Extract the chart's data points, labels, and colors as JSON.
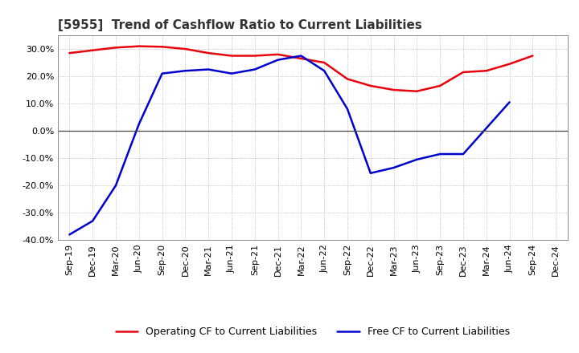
{
  "title": "[5955]  Trend of Cashflow Ratio to Current Liabilities",
  "x_labels": [
    "Sep-19",
    "Dec-19",
    "Mar-20",
    "Jun-20",
    "Sep-20",
    "Dec-20",
    "Mar-21",
    "Jun-21",
    "Sep-21",
    "Dec-21",
    "Mar-22",
    "Jun-22",
    "Sep-22",
    "Dec-22",
    "Mar-23",
    "Jun-23",
    "Sep-23",
    "Dec-23",
    "Mar-24",
    "Jun-24",
    "Sep-24",
    "Dec-24"
  ],
  "operating_cf": [
    28.5,
    29.5,
    30.5,
    31.0,
    30.8,
    30.0,
    28.5,
    27.5,
    27.5,
    28.0,
    26.5,
    25.0,
    19.0,
    16.5,
    15.0,
    14.5,
    16.5,
    21.5,
    22.0,
    24.5,
    27.5,
    null
  ],
  "free_cf": [
    -38.0,
    -33.0,
    -20.0,
    2.5,
    21.0,
    22.0,
    22.5,
    21.0,
    22.5,
    26.0,
    27.5,
    22.0,
    8.0,
    -15.5,
    -13.5,
    -10.5,
    -8.5,
    -8.5,
    1.0,
    10.5,
    null,
    null
  ],
  "ylim": [
    -40,
    35
  ],
  "yticks": [
    -40,
    -30,
    -20,
    -10,
    0,
    10,
    20,
    30
  ],
  "operating_color": "#e8000d",
  "free_color": "#0000cd",
  "background_color": "#ffffff",
  "plot_bg_color": "#ffffff",
  "grid_color": "#b0b0b0",
  "legend_operating": "Operating CF to Current Liabilities",
  "legend_free": "Free CF to Current Liabilities",
  "title_fontsize": 11,
  "label_fontsize": 8,
  "legend_fontsize": 9
}
